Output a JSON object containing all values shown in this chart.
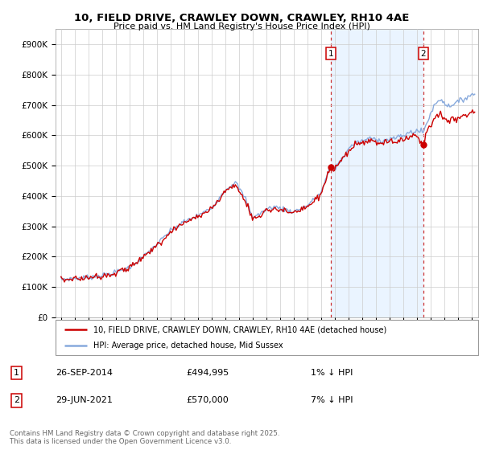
{
  "title_line1": "10, FIELD DRIVE, CRAWLEY DOWN, CRAWLEY, RH10 4AE",
  "title_line2": "Price paid vs. HM Land Registry's House Price Index (HPI)",
  "ylim": [
    0,
    950000
  ],
  "yticks": [
    0,
    100000,
    200000,
    300000,
    400000,
    500000,
    600000,
    700000,
    800000,
    900000
  ],
  "ytick_labels": [
    "£0",
    "£100K",
    "£200K",
    "£300K",
    "£400K",
    "£500K",
    "£600K",
    "£700K",
    "£800K",
    "£900K"
  ],
  "house_color": "#cc0000",
  "hpi_color": "#88aadd",
  "shade_color": "#ddeeff",
  "transaction1_date": "26-SEP-2014",
  "transaction1_price": "£494,995",
  "transaction1_note": "1% ↓ HPI",
  "transaction2_date": "29-JUN-2021",
  "transaction2_price": "£570,000",
  "transaction2_note": "7% ↓ HPI",
  "legend_house_label": "10, FIELD DRIVE, CRAWLEY DOWN, CRAWLEY, RH10 4AE (detached house)",
  "legend_hpi_label": "HPI: Average price, detached house, Mid Sussex",
  "footer": "Contains HM Land Registry data © Crown copyright and database right 2025.\nThis data is licensed under the Open Government Licence v3.0.",
  "background_color": "#ffffff",
  "grid_color": "#cccccc",
  "vline1_x_year": 2014.74,
  "vline2_x_year": 2021.49,
  "xlim_left": 1994.6,
  "xlim_right": 2025.5
}
